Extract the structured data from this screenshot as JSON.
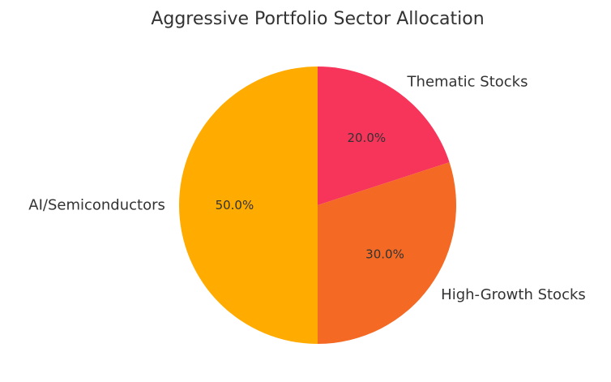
{
  "chart_data": {
    "type": "pie",
    "title": "Aggressive Portfolio Sector Allocation",
    "start_angle_deg": 90,
    "direction": "clockwise",
    "slices": [
      {
        "label": "Thematic Stocks",
        "value": 20.0,
        "pct_text": "20.0%",
        "color": "#F7345A"
      },
      {
        "label": "High-Growth Stocks",
        "value": 30.0,
        "pct_text": "30.0%",
        "color": "#F46A24"
      },
      {
        "label": "AI/Semiconductors",
        "value": 50.0,
        "pct_text": "50.0%",
        "color": "#FFAB00"
      }
    ]
  }
}
